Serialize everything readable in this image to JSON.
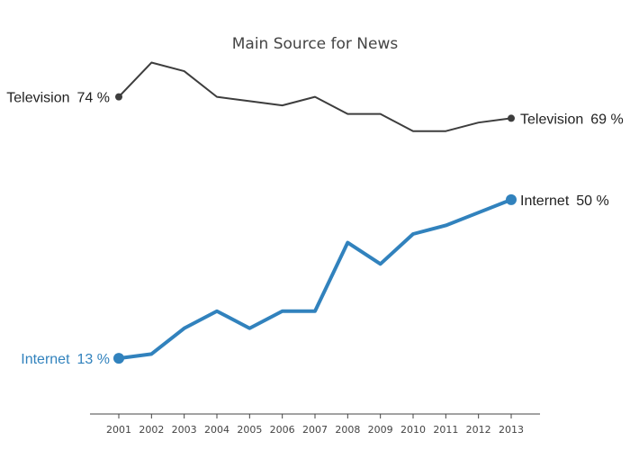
{
  "chart_data": {
    "type": "line",
    "title": "Main Source for News",
    "xlabel": "",
    "ylabel": "",
    "x": [
      2001,
      2002,
      2003,
      2004,
      2005,
      2006,
      2007,
      2008,
      2009,
      2010,
      2011,
      2012,
      2013
    ],
    "x_tick_labels": [
      "2001",
      "2002",
      "2003",
      "2004",
      "2005",
      "2006",
      "2007",
      "2008",
      "2009",
      "2010",
      "2011",
      "2012",
      "2013"
    ],
    "ylim": [
      0,
      84
    ],
    "grid": false,
    "series": [
      {
        "name": "Television",
        "color": "#3d3d3d",
        "values": [
          74,
          82,
          80,
          74,
          73,
          72,
          74,
          70,
          70,
          66,
          66,
          68,
          69
        ],
        "start_label": {
          "name": "Television",
          "value": "74 %"
        },
        "end_label": {
          "name": "Television",
          "value": "69 %"
        }
      },
      {
        "name": "Internet",
        "color": "#3182bd",
        "values": [
          13,
          14,
          20,
          24,
          20,
          24,
          24,
          40,
          35,
          42,
          44,
          47,
          50
        ],
        "start_label": {
          "name": "Internet",
          "value": "13 %"
        },
        "end_label": {
          "name": "Internet",
          "value": "50 %"
        }
      }
    ]
  }
}
